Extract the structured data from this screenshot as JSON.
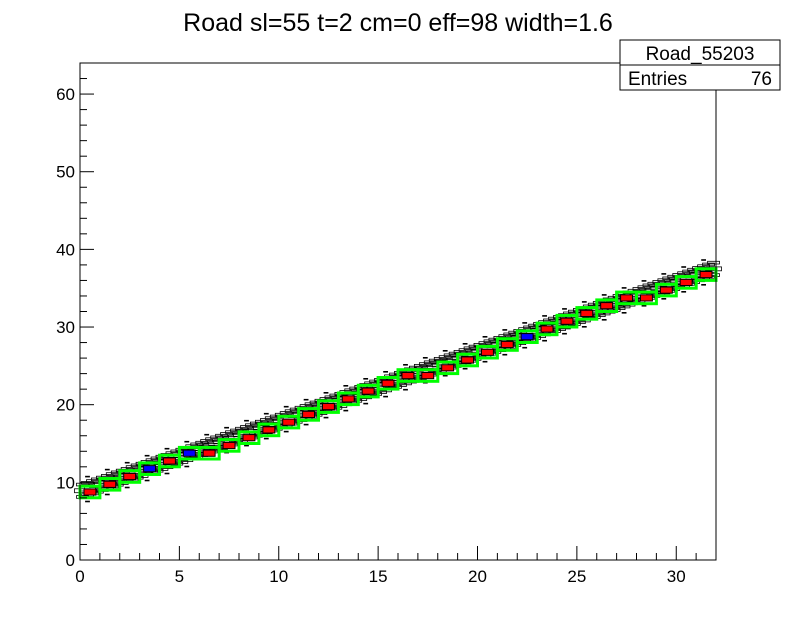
{
  "chart_data": {
    "type": "heatmap",
    "title": "Road sl=55 t=2 cm=0 eff=98 width=1.6",
    "xlabel": "",
    "ylabel": "",
    "xlim": [
      0,
      32
    ],
    "ylim": [
      0,
      64
    ],
    "x_ticks": [
      "0",
      "5",
      "10",
      "15",
      "20",
      "25",
      "30"
    ],
    "y_ticks": [
      "0",
      "10",
      "20",
      "30",
      "40",
      "50",
      "60"
    ],
    "grid": false,
    "stats_box": {
      "name": "Road_55203",
      "entries_label": "Entries",
      "entries_value": "76"
    },
    "road_slope": 0.9,
    "road_intercept": 8.8,
    "bins": [
      {
        "x": 0,
        "y": 8
      },
      {
        "x": 1,
        "y": 9
      },
      {
        "x": 2,
        "y": 10
      },
      {
        "x": 3,
        "y": 11
      },
      {
        "x": 4,
        "y": 12
      },
      {
        "x": 5,
        "y": 13
      },
      {
        "x": 6,
        "y": 13
      },
      {
        "x": 7,
        "y": 14
      },
      {
        "x": 8,
        "y": 15
      },
      {
        "x": 9,
        "y": 16
      },
      {
        "x": 10,
        "y": 17
      },
      {
        "x": 11,
        "y": 18
      },
      {
        "x": 12,
        "y": 19
      },
      {
        "x": 13,
        "y": 20
      },
      {
        "x": 14,
        "y": 21
      },
      {
        "x": 15,
        "y": 22
      },
      {
        "x": 16,
        "y": 23
      },
      {
        "x": 17,
        "y": 23
      },
      {
        "x": 18,
        "y": 24
      },
      {
        "x": 19,
        "y": 25
      },
      {
        "x": 20,
        "y": 26
      },
      {
        "x": 21,
        "y": 27
      },
      {
        "x": 22,
        "y": 28
      },
      {
        "x": 23,
        "y": 29
      },
      {
        "x": 24,
        "y": 30
      },
      {
        "x": 25,
        "y": 31
      },
      {
        "x": 26,
        "y": 32
      },
      {
        "x": 27,
        "y": 33
      },
      {
        "x": 28,
        "y": 33
      },
      {
        "x": 29,
        "y": 34
      },
      {
        "x": 30,
        "y": 35
      },
      {
        "x": 31,
        "y": 36
      }
    ],
    "colors": {
      "fill": "#ff0000",
      "alt_fill": "#0000ff",
      "outline": "#00ff00",
      "axis": "#000000"
    }
  }
}
